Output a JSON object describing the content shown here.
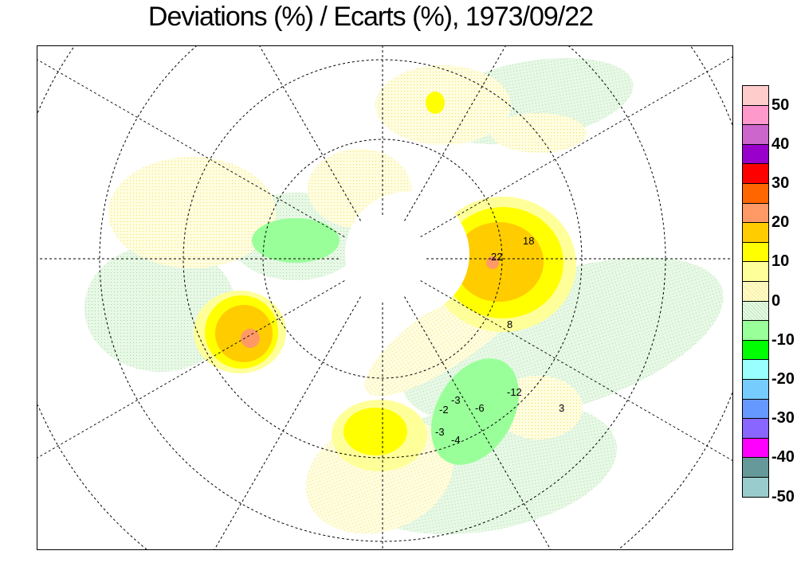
{
  "title": "Deviations (%) / Ecarts (%), 1973/09/22",
  "legend": {
    "colors": [
      "#ffcccc",
      "#ff99cc",
      "#cc66cc",
      "#9900cc",
      "#ff0000",
      "#ff6600",
      "#ff9966",
      "#ffcc00",
      "#ffff00",
      "#ffff99",
      "#fffbd0",
      "#e4f7e0",
      "#99ff99",
      "#00ff00",
      "#99ffff",
      "#77ccff",
      "#6699ff",
      "#8866ff",
      "#ff00ff",
      "#669999",
      "#99cccc"
    ],
    "labels": [
      "50",
      "40",
      "30",
      "20",
      "10",
      "0",
      "-10",
      "-20",
      "-30",
      "-40",
      "-50"
    ]
  },
  "contour_labels": [
    "22",
    "18",
    "8",
    "-12",
    "-6",
    "-3",
    "-2",
    "-4",
    "-3",
    "3"
  ]
}
